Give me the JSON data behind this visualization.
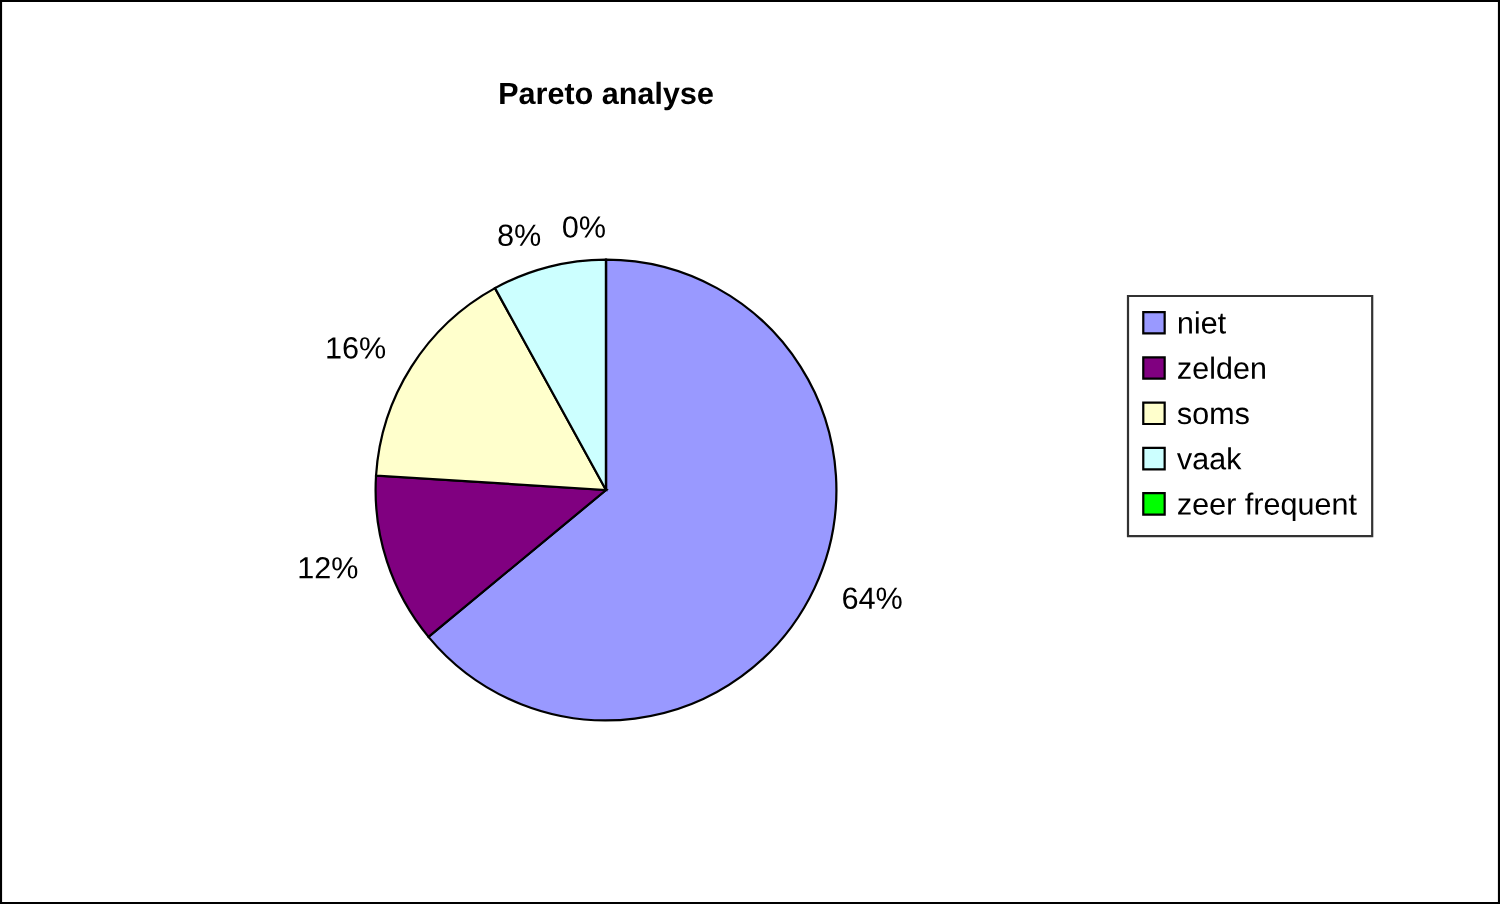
{
  "chart_data": {
    "type": "pie",
    "title": "Pareto analyse",
    "categories": [
      "niet",
      "zelden",
      "soms",
      "vaak",
      "zeer frequent"
    ],
    "values": [
      64,
      12,
      16,
      8,
      0
    ],
    "value_labels": [
      "64%",
      "12%",
      "16%",
      "8%",
      "0%"
    ],
    "colors": [
      "#9999ff",
      "#800080",
      "#ffffcc",
      "#ccffff",
      "#00ff00"
    ],
    "legend": "right"
  }
}
